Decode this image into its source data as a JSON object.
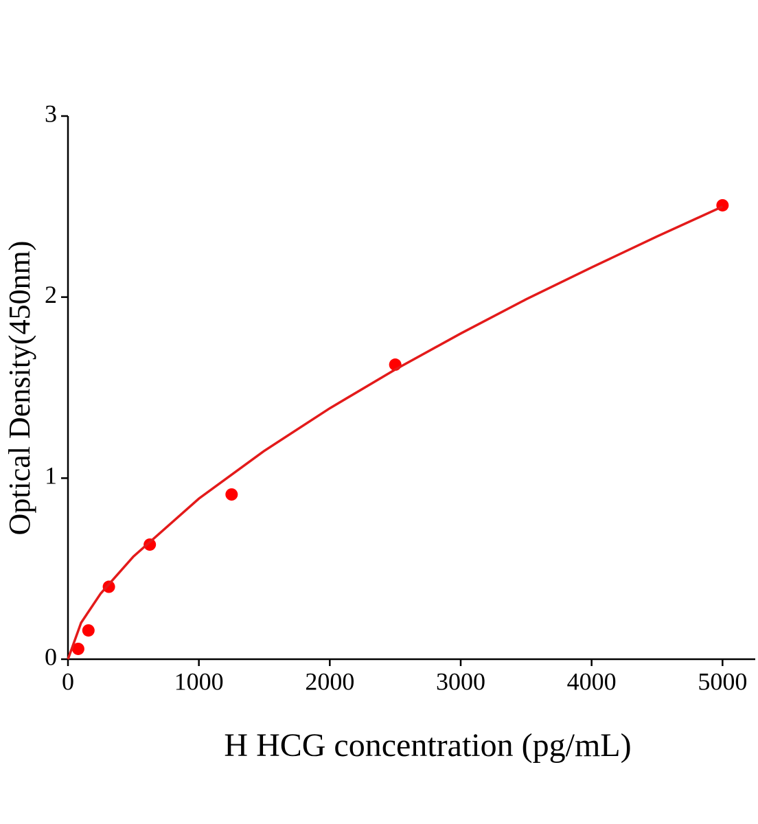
{
  "chart_data": {
    "type": "scatter",
    "x_label": "H HCG concentration (pg/mL)",
    "y_label": "Optical Density(450nm)",
    "xlim": [
      0,
      5250
    ],
    "ylim": [
      0,
      3
    ],
    "xticks": [
      0,
      1000,
      2000,
      3000,
      4000,
      5000
    ],
    "yticks": [
      0,
      1,
      2,
      3
    ],
    "grid": false,
    "series": [
      {
        "style": "markers",
        "color": "#ff0000",
        "x": [
          78.125,
          156.25,
          312.5,
          625,
          1250,
          2500,
          5000
        ],
        "values": [
          0.057,
          0.159,
          0.4,
          0.633,
          0.91,
          1.627,
          2.507
        ]
      },
      {
        "style": "line",
        "color": "#e31a1a",
        "x": [
          0,
          100,
          250,
          500,
          1000,
          1500,
          2000,
          2500,
          3000,
          3500,
          4000,
          4500,
          5000
        ],
        "values": [
          0,
          0.201,
          0.363,
          0.567,
          0.887,
          1.151,
          1.386,
          1.6,
          1.799,
          1.988,
          2.164,
          2.335,
          2.5
        ]
      }
    ]
  }
}
